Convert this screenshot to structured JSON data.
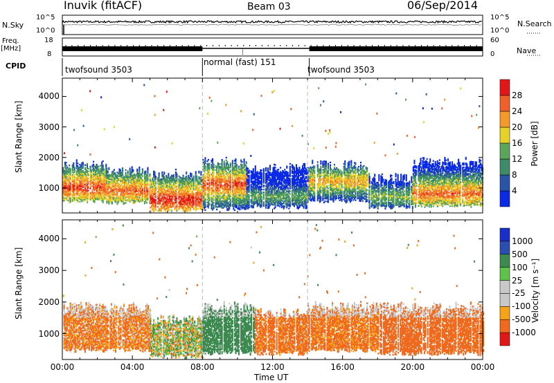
{
  "header": {
    "station": "Inuvik (fitACF)",
    "beam": "Beam 03",
    "date": "06/Sep/2014"
  },
  "strip": {
    "nsky_label": "N.Sky",
    "nsky_ticks": [
      "10^5",
      "10^0"
    ],
    "nsearch_label": "N.Search",
    "nsearch_ticks": [
      "10^5",
      "10^0"
    ],
    "freq_label_1": "Freq.",
    "freq_label_2": "[MHz]",
    "freq_ticks": [
      "18",
      "8"
    ],
    "nave_label": "Nave",
    "nave_ticks": [
      "60",
      "0"
    ],
    "cpid_label": "CPID",
    "cpid_segments": [
      {
        "label": "twofsound 3503",
        "start": 0,
        "end": 8
      },
      {
        "label": "normal (fast) 151",
        "start": 8,
        "end": 14
      },
      {
        "label": "twofsound 3503",
        "start": 14,
        "end": 24
      }
    ]
  },
  "colors": {
    "power_scale": [
      "#0a2ae6",
      "#2a54a8",
      "#3f8a68",
      "#5aa55a",
      "#e6d12a",
      "#f39a2a",
      "#f0602a",
      "#e01818"
    ],
    "velocity_scale": [
      "#e01818",
      "#f06a1e",
      "#f7a31a",
      "#c8c8c8",
      "#c8c8c8",
      "#5fc24a",
      "#3c8a50",
      "#2a4fb0",
      "#1a2fc8"
    ],
    "rect_fill_power": "#ffffff"
  },
  "chart_data": [
    {
      "type": "heatmap",
      "panel": "power",
      "xlabel": "Time UT",
      "ylabel": "Slant Range [km]",
      "x_unit": "hours UT",
      "xlim": [
        0,
        24
      ],
      "ylim": [
        180,
        4600
      ],
      "x_ticks": [
        "00:00",
        "04:00",
        "08:00",
        "12:00",
        "16:00",
        "20:00",
        "00:00"
      ],
      "y_ticks": [
        "1000",
        "2000",
        "3000",
        "4000"
      ],
      "colorbar_label": "Power [dB]",
      "colorbar_ticks": [
        "4",
        "8",
        "12",
        "16",
        "20",
        "24",
        "28"
      ],
      "colorbar_range": [
        0,
        32
      ],
      "mode_changes_hours": [
        8,
        14
      ],
      "scatter_bands": [
        {
          "start": 0,
          "end": 2.5,
          "range_low": 500,
          "range_high": 1900,
          "peak_range": 1000,
          "peak_db": 28
        },
        {
          "start": 2.5,
          "end": 5,
          "range_low": 450,
          "range_high": 1700,
          "peak_range": 900,
          "peak_db": 26
        },
        {
          "start": 5,
          "end": 8,
          "range_low": 200,
          "range_high": 1600,
          "peak_range": 600,
          "peak_db": 30
        },
        {
          "start": 8,
          "end": 10.5,
          "range_low": 250,
          "range_high": 2000,
          "peak_range": 1100,
          "peak_db": 28
        },
        {
          "start": 10.5,
          "end": 14,
          "range_low": 300,
          "range_high": 1800,
          "peak_range": 700,
          "peak_db": 14
        },
        {
          "start": 14,
          "end": 17.5,
          "range_low": 500,
          "range_high": 1900,
          "peak_range": 1200,
          "peak_db": 22
        },
        {
          "start": 17.5,
          "end": 20,
          "range_low": 300,
          "range_high": 1500,
          "peak_range": 700,
          "peak_db": 16
        },
        {
          "start": 20,
          "end": 24,
          "range_low": 350,
          "range_high": 2000,
          "peak_range": 800,
          "peak_db": 26
        }
      ]
    },
    {
      "type": "heatmap",
      "panel": "velocity",
      "xlabel": "Time UT",
      "ylabel": "Slant Range [km]",
      "x_unit": "hours UT",
      "xlim": [
        0,
        24
      ],
      "ylim": [
        180,
        4600
      ],
      "x_ticks": [
        "00:00",
        "04:00",
        "08:00",
        "12:00",
        "16:00",
        "20:00",
        "00:00"
      ],
      "y_ticks": [
        "1000",
        "2000",
        "3000",
        "4000"
      ],
      "colorbar_label": "Velocity [m s⁻¹]",
      "colorbar_ticks": [
        "1000",
        "500",
        "100",
        "25",
        "-25",
        "-100",
        "-500",
        "-1000"
      ],
      "mode_changes_hours": [
        8,
        14
      ],
      "scatter_bands": [
        {
          "start": 0,
          "end": 5,
          "range_low": 400,
          "range_high": 2000,
          "mean_velocity": -150
        },
        {
          "start": 5,
          "end": 8,
          "range_low": 200,
          "range_high": 1600,
          "mean_velocity": 20
        },
        {
          "start": 8,
          "end": 11,
          "range_low": 300,
          "range_high": 2000,
          "mean_velocity": 250
        },
        {
          "start": 11,
          "end": 14,
          "range_low": 300,
          "range_high": 1800,
          "mean_velocity": -200
        },
        {
          "start": 14,
          "end": 18,
          "range_low": 400,
          "range_high": 2000,
          "mean_velocity": -180
        },
        {
          "start": 18,
          "end": 24,
          "range_low": 300,
          "range_high": 2000,
          "mean_velocity": -300
        }
      ]
    }
  ]
}
